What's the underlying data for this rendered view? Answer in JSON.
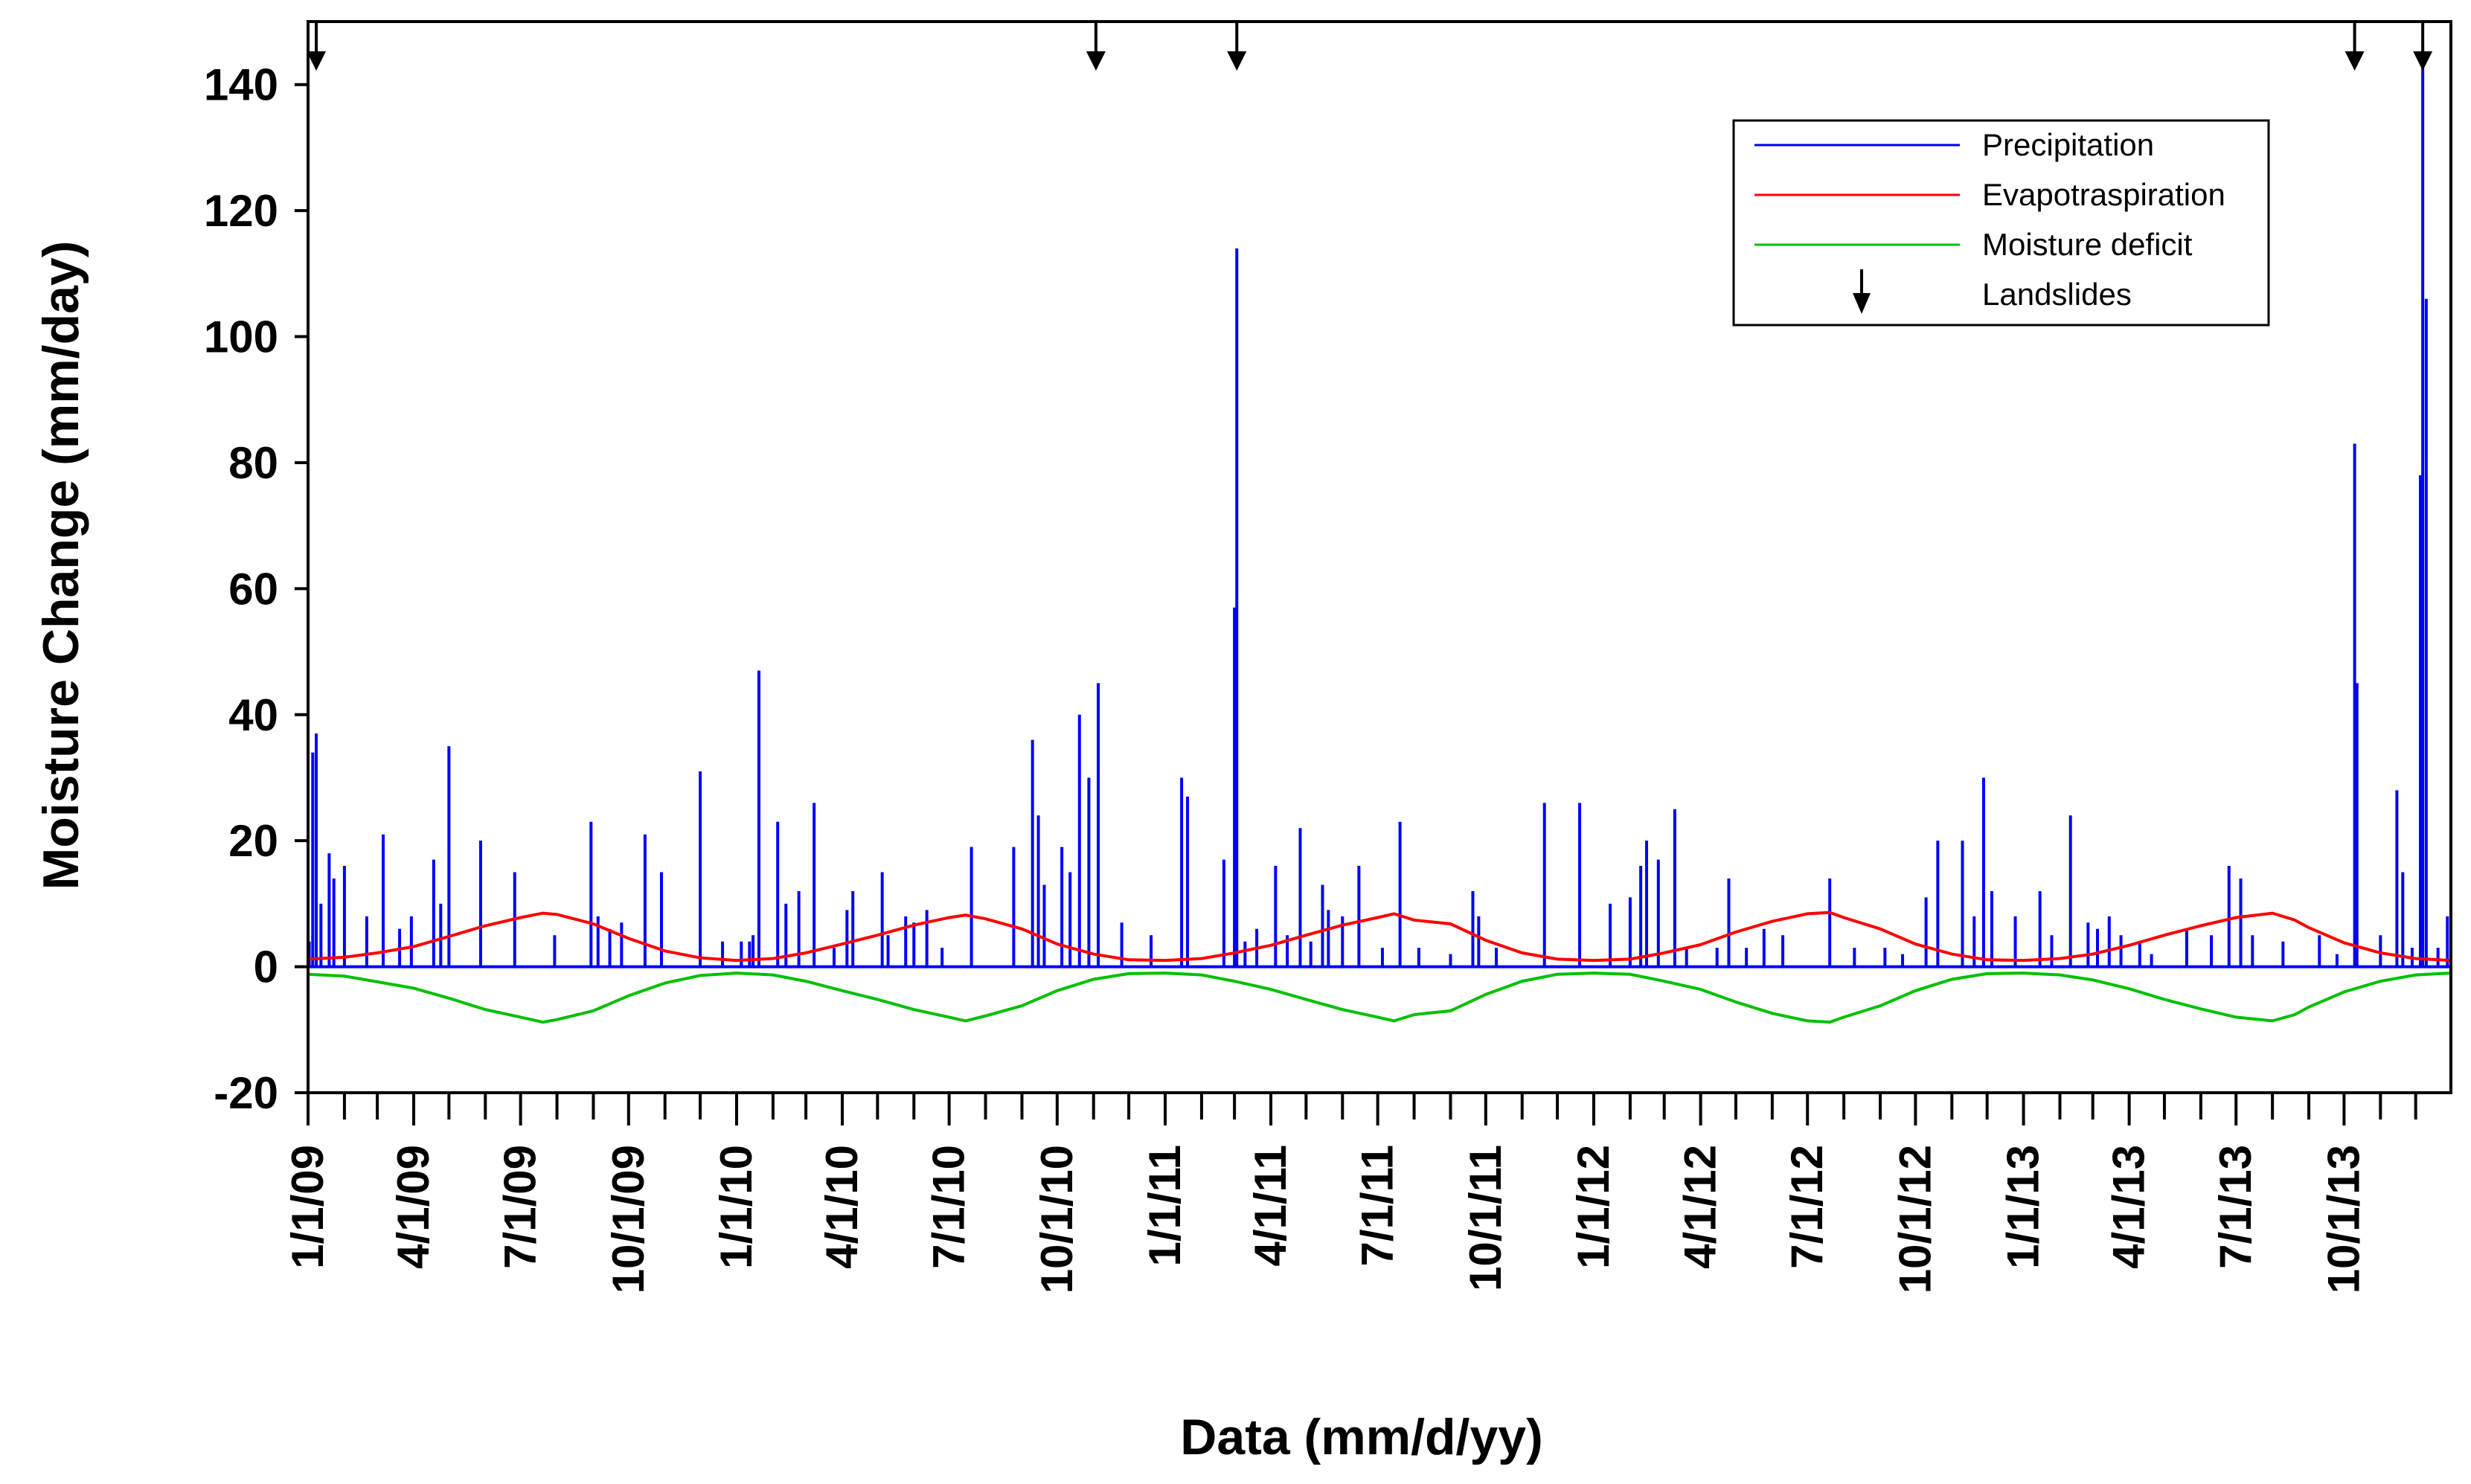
{
  "chart_data": {
    "type": "line",
    "title": "",
    "xlabel": "Data (mm/d/yy)",
    "ylabel": "Moisture Change (mm/day)",
    "ylim": [
      -20,
      150
    ],
    "xlim": [
      "2009-01-01",
      "2013-12-31"
    ],
    "yticks": [
      -20,
      0,
      20,
      40,
      60,
      80,
      100,
      120,
      140
    ],
    "xticks": [
      {
        "date": "2009-01-01",
        "label": "1/1/09"
      },
      {
        "date": "2009-04-01",
        "label": "4/1/09"
      },
      {
        "date": "2009-07-01",
        "label": "7/1/09"
      },
      {
        "date": "2009-10-01",
        "label": "10/1/09"
      },
      {
        "date": "2010-01-01",
        "label": "1/1/10"
      },
      {
        "date": "2010-04-01",
        "label": "4/1/10"
      },
      {
        "date": "2010-07-01",
        "label": "7/1/10"
      },
      {
        "date": "2010-10-01",
        "label": "10/1/10"
      },
      {
        "date": "2011-01-01",
        "label": "1/1/11"
      },
      {
        "date": "2011-04-01",
        "label": "4/1/11"
      },
      {
        "date": "2011-07-01",
        "label": "7/1/11"
      },
      {
        "date": "2011-10-01",
        "label": "10/1/11"
      },
      {
        "date": "2012-01-01",
        "label": "1/1/12"
      },
      {
        "date": "2012-04-01",
        "label": "4/1/12"
      },
      {
        "date": "2012-07-01",
        "label": "7/1/12"
      },
      {
        "date": "2012-10-01",
        "label": "10/1/12"
      },
      {
        "date": "2013-01-01",
        "label": "1/1/13"
      },
      {
        "date": "2013-04-01",
        "label": "4/1/13"
      },
      {
        "date": "2013-07-01",
        "label": "7/1/13"
      },
      {
        "date": "2013-10-01",
        "label": "10/1/13"
      }
    ],
    "grid": false,
    "legend_position": "top-right",
    "series": [
      {
        "name": "Precipitation",
        "color": "#0000ff",
        "style": "spikes",
        "points": [
          [
            "2009-01-02",
            4
          ],
          [
            "2009-01-05",
            34
          ],
          [
            "2009-01-08",
            37
          ],
          [
            "2009-01-12",
            10
          ],
          [
            "2009-01-19",
            18
          ],
          [
            "2009-01-23",
            14
          ],
          [
            "2009-02-01",
            16
          ],
          [
            "2009-02-20",
            8
          ],
          [
            "2009-03-06",
            21
          ],
          [
            "2009-03-20",
            6
          ],
          [
            "2009-03-30",
            8
          ],
          [
            "2009-04-18",
            17
          ],
          [
            "2009-04-24",
            10
          ],
          [
            "2009-05-01",
            35
          ],
          [
            "2009-05-28",
            20
          ],
          [
            "2009-06-26",
            15
          ],
          [
            "2009-07-30",
            5
          ],
          [
            "2009-08-30",
            23
          ],
          [
            "2009-09-05",
            8
          ],
          [
            "2009-09-15",
            6
          ],
          [
            "2009-09-25",
            7
          ],
          [
            "2009-10-15",
            21
          ],
          [
            "2009-10-29",
            15
          ],
          [
            "2009-12-01",
            31
          ],
          [
            "2009-12-20",
            4
          ],
          [
            "2010-01-05",
            4
          ],
          [
            "2010-01-12",
            4
          ],
          [
            "2010-01-15",
            5
          ],
          [
            "2010-01-20",
            47
          ],
          [
            "2010-02-05",
            23
          ],
          [
            "2010-02-12",
            10
          ],
          [
            "2010-02-23",
            12
          ],
          [
            "2010-03-08",
            26
          ],
          [
            "2010-03-25",
            3
          ],
          [
            "2010-04-05",
            9
          ],
          [
            "2010-04-10",
            12
          ],
          [
            "2010-05-05",
            15
          ],
          [
            "2010-05-10",
            5
          ],
          [
            "2010-05-25",
            8
          ],
          [
            "2010-06-01",
            7
          ],
          [
            "2010-06-12",
            9
          ],
          [
            "2010-06-25",
            3
          ],
          [
            "2010-07-20",
            19
          ],
          [
            "2010-08-25",
            19
          ],
          [
            "2010-09-10",
            36
          ],
          [
            "2010-09-15",
            24
          ],
          [
            "2010-09-20",
            13
          ],
          [
            "2010-10-05",
            19
          ],
          [
            "2010-10-12",
            15
          ],
          [
            "2010-10-20",
            40
          ],
          [
            "2010-10-28",
            30
          ],
          [
            "2010-11-05",
            45
          ],
          [
            "2010-11-25",
            7
          ],
          [
            "2010-12-20",
            5
          ],
          [
            "2011-01-15",
            30
          ],
          [
            "2011-01-20",
            27
          ],
          [
            "2011-02-20",
            17
          ],
          [
            "2011-03-01",
            57
          ],
          [
            "2011-03-03",
            114
          ],
          [
            "2011-03-10",
            4
          ],
          [
            "2011-03-20",
            6
          ],
          [
            "2011-04-05",
            16
          ],
          [
            "2011-04-15",
            5
          ],
          [
            "2011-04-26",
            22
          ],
          [
            "2011-05-05",
            4
          ],
          [
            "2011-05-15",
            13
          ],
          [
            "2011-05-20",
            9
          ],
          [
            "2011-06-01",
            8
          ],
          [
            "2011-06-15",
            16
          ],
          [
            "2011-07-05",
            3
          ],
          [
            "2011-07-20",
            23
          ],
          [
            "2011-08-05",
            3
          ],
          [
            "2011-09-01",
            2
          ],
          [
            "2011-09-20",
            12
          ],
          [
            "2011-09-25",
            8
          ],
          [
            "2011-10-10",
            3
          ],
          [
            "2011-11-20",
            26
          ],
          [
            "2011-12-20",
            26
          ],
          [
            "2012-01-15",
            10
          ],
          [
            "2012-02-01",
            11
          ],
          [
            "2012-02-10",
            16
          ],
          [
            "2012-02-15",
            20
          ],
          [
            "2012-02-25",
            17
          ],
          [
            "2012-03-10",
            25
          ],
          [
            "2012-03-20",
            3
          ],
          [
            "2012-04-15",
            3
          ],
          [
            "2012-04-25",
            14
          ],
          [
            "2012-05-10",
            3
          ],
          [
            "2012-05-25",
            6
          ],
          [
            "2012-06-10",
            5
          ],
          [
            "2012-07-20",
            14
          ],
          [
            "2012-08-10",
            3
          ],
          [
            "2012-09-05",
            3
          ],
          [
            "2012-09-20",
            2
          ],
          [
            "2012-10-10",
            11
          ],
          [
            "2012-10-20",
            20
          ],
          [
            "2012-11-10",
            20
          ],
          [
            "2012-11-20",
            8
          ],
          [
            "2012-11-28",
            30
          ],
          [
            "2012-12-05",
            12
          ],
          [
            "2012-12-25",
            8
          ],
          [
            "2013-01-15",
            12
          ],
          [
            "2013-01-25",
            5
          ],
          [
            "2013-02-10",
            24
          ],
          [
            "2013-02-25",
            7
          ],
          [
            "2013-03-05",
            6
          ],
          [
            "2013-03-15",
            8
          ],
          [
            "2013-03-25",
            5
          ],
          [
            "2013-04-10",
            4
          ],
          [
            "2013-04-20",
            2
          ],
          [
            "2013-05-20",
            6
          ],
          [
            "2013-06-10",
            5
          ],
          [
            "2013-06-25",
            16
          ],
          [
            "2013-07-05",
            14
          ],
          [
            "2013-07-15",
            5
          ],
          [
            "2013-08-10",
            4
          ],
          [
            "2013-09-10",
            5
          ],
          [
            "2013-09-25",
            2
          ],
          [
            "2013-10-10",
            83
          ],
          [
            "2013-10-12",
            45
          ],
          [
            "2013-11-01",
            5
          ],
          [
            "2013-11-15",
            28
          ],
          [
            "2013-11-20",
            15
          ],
          [
            "2013-11-28",
            3
          ],
          [
            "2013-12-05",
            78
          ],
          [
            "2013-12-07",
            146
          ],
          [
            "2013-12-10",
            106
          ],
          [
            "2013-12-20",
            3
          ],
          [
            "2013-12-28",
            8
          ]
        ]
      },
      {
        "name": "Evapotraspiration",
        "color": "#ff0000",
        "style": "line",
        "points": [
          [
            "2009-01-01",
            1.2
          ],
          [
            "2009-02-01",
            1.5
          ],
          [
            "2009-03-01",
            2.2
          ],
          [
            "2009-04-01",
            3.2
          ],
          [
            "2009-05-01",
            4.8
          ],
          [
            "2009-06-01",
            6.5
          ],
          [
            "2009-07-01",
            7.8
          ],
          [
            "2009-07-20",
            8.5
          ],
          [
            "2009-08-01",
            8.3
          ],
          [
            "2009-09-01",
            6.8
          ],
          [
            "2009-10-01",
            4.5
          ],
          [
            "2009-11-01",
            2.5
          ],
          [
            "2009-12-01",
            1.4
          ],
          [
            "2010-01-01",
            1.0
          ],
          [
            "2010-02-01",
            1.3
          ],
          [
            "2010-03-01",
            2.2
          ],
          [
            "2010-04-01",
            3.6
          ],
          [
            "2010-05-01",
            5.0
          ],
          [
            "2010-06-01",
            6.6
          ],
          [
            "2010-07-01",
            7.8
          ],
          [
            "2010-07-15",
            8.2
          ],
          [
            "2010-08-01",
            7.6
          ],
          [
            "2010-09-01",
            6.0
          ],
          [
            "2010-10-01",
            3.6
          ],
          [
            "2010-11-01",
            2.0
          ],
          [
            "2010-12-01",
            1.1
          ],
          [
            "2011-01-01",
            1.0
          ],
          [
            "2011-02-01",
            1.3
          ],
          [
            "2011-03-01",
            2.2
          ],
          [
            "2011-04-01",
            3.4
          ],
          [
            "2011-05-01",
            5.0
          ],
          [
            "2011-06-01",
            6.6
          ],
          [
            "2011-07-01",
            7.8
          ],
          [
            "2011-07-15",
            8.4
          ],
          [
            "2011-08-01",
            7.4
          ],
          [
            "2011-09-01",
            6.8
          ],
          [
            "2011-10-01",
            4.2
          ],
          [
            "2011-11-01",
            2.2
          ],
          [
            "2011-12-01",
            1.2
          ],
          [
            "2012-01-01",
            1.0
          ],
          [
            "2012-02-01",
            1.2
          ],
          [
            "2012-03-01",
            2.2
          ],
          [
            "2012-04-01",
            3.5
          ],
          [
            "2012-05-01",
            5.5
          ],
          [
            "2012-06-01",
            7.2
          ],
          [
            "2012-07-01",
            8.4
          ],
          [
            "2012-07-20",
            8.6
          ],
          [
            "2012-08-01",
            7.8
          ],
          [
            "2012-09-01",
            6.0
          ],
          [
            "2012-10-01",
            3.6
          ],
          [
            "2012-11-01",
            2.0
          ],
          [
            "2012-12-01",
            1.1
          ],
          [
            "2013-01-01",
            1.0
          ],
          [
            "2013-02-01",
            1.3
          ],
          [
            "2013-03-01",
            2.0
          ],
          [
            "2013-04-01",
            3.4
          ],
          [
            "2013-05-01",
            5.0
          ],
          [
            "2013-06-01",
            6.5
          ],
          [
            "2013-07-01",
            7.8
          ],
          [
            "2013-08-01",
            8.5
          ],
          [
            "2013-08-20",
            7.4
          ],
          [
            "2013-09-01",
            6.2
          ],
          [
            "2013-10-01",
            3.8
          ],
          [
            "2013-11-01",
            2.2
          ],
          [
            "2013-12-01",
            1.3
          ],
          [
            "2013-12-31",
            1.0
          ]
        ]
      },
      {
        "name": "Moisture deficit",
        "color": "#00c000",
        "style": "line",
        "points": [
          [
            "2009-01-01",
            -1.2
          ],
          [
            "2009-02-01",
            -1.5
          ],
          [
            "2009-03-01",
            -2.4
          ],
          [
            "2009-04-01",
            -3.4
          ],
          [
            "2009-05-01",
            -5.0
          ],
          [
            "2009-06-01",
            -6.8
          ],
          [
            "2009-07-01",
            -8.0
          ],
          [
            "2009-07-20",
            -8.8
          ],
          [
            "2009-08-01",
            -8.4
          ],
          [
            "2009-09-01",
            -7.0
          ],
          [
            "2009-10-01",
            -4.6
          ],
          [
            "2009-11-01",
            -2.6
          ],
          [
            "2009-12-01",
            -1.4
          ],
          [
            "2010-01-01",
            -1.0
          ],
          [
            "2010-02-01",
            -1.3
          ],
          [
            "2010-03-01",
            -2.3
          ],
          [
            "2010-04-01",
            -3.8
          ],
          [
            "2010-05-01",
            -5.2
          ],
          [
            "2010-06-01",
            -6.8
          ],
          [
            "2010-07-01",
            -8.0
          ],
          [
            "2010-07-15",
            -8.6
          ],
          [
            "2010-08-01",
            -7.8
          ],
          [
            "2010-09-01",
            -6.2
          ],
          [
            "2010-10-01",
            -3.8
          ],
          [
            "2010-11-01",
            -2.0
          ],
          [
            "2010-12-01",
            -1.1
          ],
          [
            "2011-01-01",
            -1.0
          ],
          [
            "2011-02-01",
            -1.3
          ],
          [
            "2011-03-01",
            -2.3
          ],
          [
            "2011-04-01",
            -3.6
          ],
          [
            "2011-05-01",
            -5.2
          ],
          [
            "2011-06-01",
            -6.8
          ],
          [
            "2011-07-01",
            -8.0
          ],
          [
            "2011-07-15",
            -8.6
          ],
          [
            "2011-08-01",
            -7.6
          ],
          [
            "2011-09-01",
            -7.0
          ],
          [
            "2011-10-01",
            -4.4
          ],
          [
            "2011-11-01",
            -2.3
          ],
          [
            "2011-12-01",
            -1.2
          ],
          [
            "2012-01-01",
            -1.0
          ],
          [
            "2012-02-01",
            -1.2
          ],
          [
            "2012-03-01",
            -2.3
          ],
          [
            "2012-04-01",
            -3.6
          ],
          [
            "2012-05-01",
            -5.6
          ],
          [
            "2012-06-01",
            -7.4
          ],
          [
            "2012-07-01",
            -8.6
          ],
          [
            "2012-07-20",
            -8.8
          ],
          [
            "2012-08-01",
            -8.0
          ],
          [
            "2012-09-01",
            -6.2
          ],
          [
            "2012-10-01",
            -3.8
          ],
          [
            "2012-11-01",
            -2.0
          ],
          [
            "2012-12-01",
            -1.1
          ],
          [
            "2013-01-01",
            -1.0
          ],
          [
            "2013-02-01",
            -1.3
          ],
          [
            "2013-03-01",
            -2.1
          ],
          [
            "2013-04-01",
            -3.5
          ],
          [
            "2013-05-01",
            -5.2
          ],
          [
            "2013-06-01",
            -6.7
          ],
          [
            "2013-07-01",
            -8.0
          ],
          [
            "2013-08-01",
            -8.6
          ],
          [
            "2013-08-20",
            -7.6
          ],
          [
            "2013-09-01",
            -6.4
          ],
          [
            "2013-10-01",
            -4.0
          ],
          [
            "2013-11-01",
            -2.3
          ],
          [
            "2013-12-01",
            -1.3
          ],
          [
            "2013-12-31",
            -1.0
          ]
        ]
      }
    ],
    "landslides": {
      "name": "Landslides",
      "dates": [
        "2009-01-08",
        "2010-11-03",
        "2011-03-03",
        "2013-10-10",
        "2013-12-07"
      ]
    }
  }
}
